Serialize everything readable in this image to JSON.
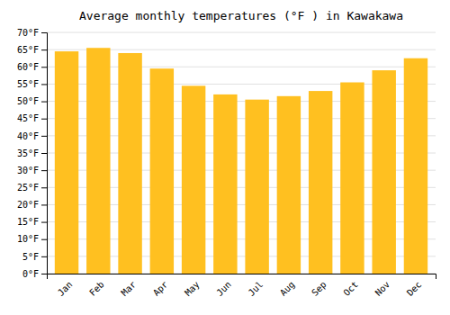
{
  "chart_data": {
    "type": "bar",
    "title": "Average monthly temperatures (°F ) in Kawakawa",
    "categories": [
      "Jan",
      "Feb",
      "Mar",
      "Apr",
      "May",
      "Jun",
      "Jul",
      "Aug",
      "Sep",
      "Oct",
      "Nov",
      "Dec"
    ],
    "values": [
      64.5,
      65.5,
      64.0,
      59.5,
      54.5,
      52.0,
      50.5,
      51.5,
      53.0,
      55.5,
      59.0,
      62.5
    ],
    "color": "#FFC020",
    "ylim": [
      0,
      70
    ],
    "yticks": [
      {
        "value": 0,
        "label": "0°F"
      },
      {
        "value": 5,
        "label": "5°F"
      },
      {
        "value": 10,
        "label": "10°F"
      },
      {
        "value": 15,
        "label": "15°F"
      },
      {
        "value": 20,
        "label": "20°F"
      },
      {
        "value": 25,
        "label": "25°F"
      },
      {
        "value": 30,
        "label": "30°F"
      },
      {
        "value": 35,
        "label": "35°F"
      },
      {
        "value": 40,
        "label": "40°F"
      },
      {
        "value": 45,
        "label": "45°F"
      },
      {
        "value": 50,
        "label": "50°F"
      },
      {
        "value": 55,
        "label": "55°F"
      },
      {
        "value": 60,
        "label": "60°F"
      },
      {
        "value": 65,
        "label": "65°F"
      },
      {
        "value": 70,
        "label": "70°F"
      }
    ],
    "grid": true
  }
}
